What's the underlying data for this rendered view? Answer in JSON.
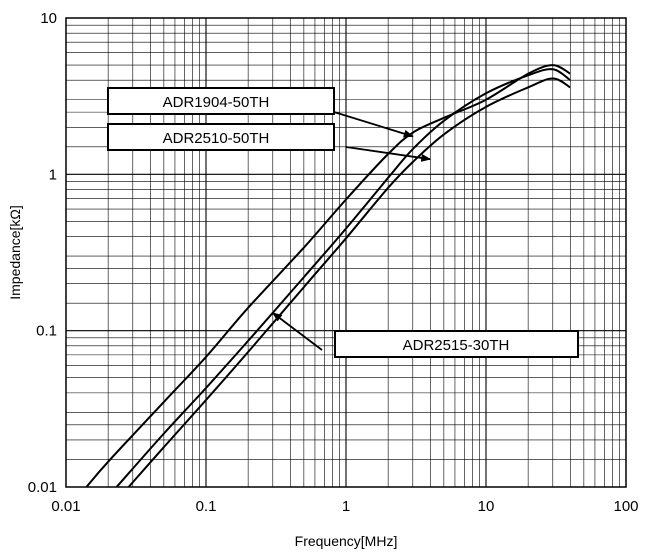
{
  "chart_data": {
    "type": "line",
    "title": "",
    "xlabel": "Frequency[MHz]",
    "ylabel": "Impedance[kΩ]",
    "x_scale": "log",
    "y_scale": "log",
    "xlim": [
      0.01,
      100
    ],
    "ylim": [
      0.01,
      10
    ],
    "x_ticks": [
      "0.01",
      "0.1",
      "1",
      "10",
      "100"
    ],
    "y_ticks": [
      "0.01",
      "0.1",
      "1",
      "10"
    ],
    "grid": true,
    "series": [
      {
        "name": "ADR1904-50TH",
        "x": [
          0.014,
          0.02,
          0.05,
          0.1,
          0.2,
          0.5,
          1,
          2,
          3,
          5,
          10,
          20,
          30,
          40
        ],
        "y": [
          0.01,
          0.0145,
          0.035,
          0.068,
          0.14,
          0.34,
          0.69,
          1.35,
          1.85,
          2.3,
          3.0,
          4.4,
          5.0,
          4.4
        ]
      },
      {
        "name": "ADR2510-50TH",
        "x": [
          0.023,
          0.05,
          0.1,
          0.2,
          0.5,
          1,
          2,
          3,
          5,
          10,
          20,
          30,
          40
        ],
        "y": [
          0.01,
          0.022,
          0.043,
          0.086,
          0.22,
          0.45,
          0.95,
          1.45,
          2.2,
          3.3,
          4.3,
          4.7,
          4.0
        ]
      },
      {
        "name": "ADR2515-30TH",
        "x": [
          0.028,
          0.05,
          0.1,
          0.2,
          0.5,
          1,
          2,
          3,
          5,
          10,
          20,
          30,
          40
        ],
        "y": [
          0.01,
          0.018,
          0.036,
          0.073,
          0.19,
          0.39,
          0.82,
          1.2,
          1.8,
          2.7,
          3.6,
          4.1,
          3.6
        ]
      }
    ],
    "annotations": [
      {
        "text": "ADR1904-50TH",
        "points_to": [
          3,
          1.75
        ]
      },
      {
        "text": "ADR2510-50TH",
        "points_to": [
          4,
          1.25
        ]
      },
      {
        "text": "ADR2515-30TH",
        "points_to": [
          0.3,
          0.13
        ]
      }
    ]
  }
}
